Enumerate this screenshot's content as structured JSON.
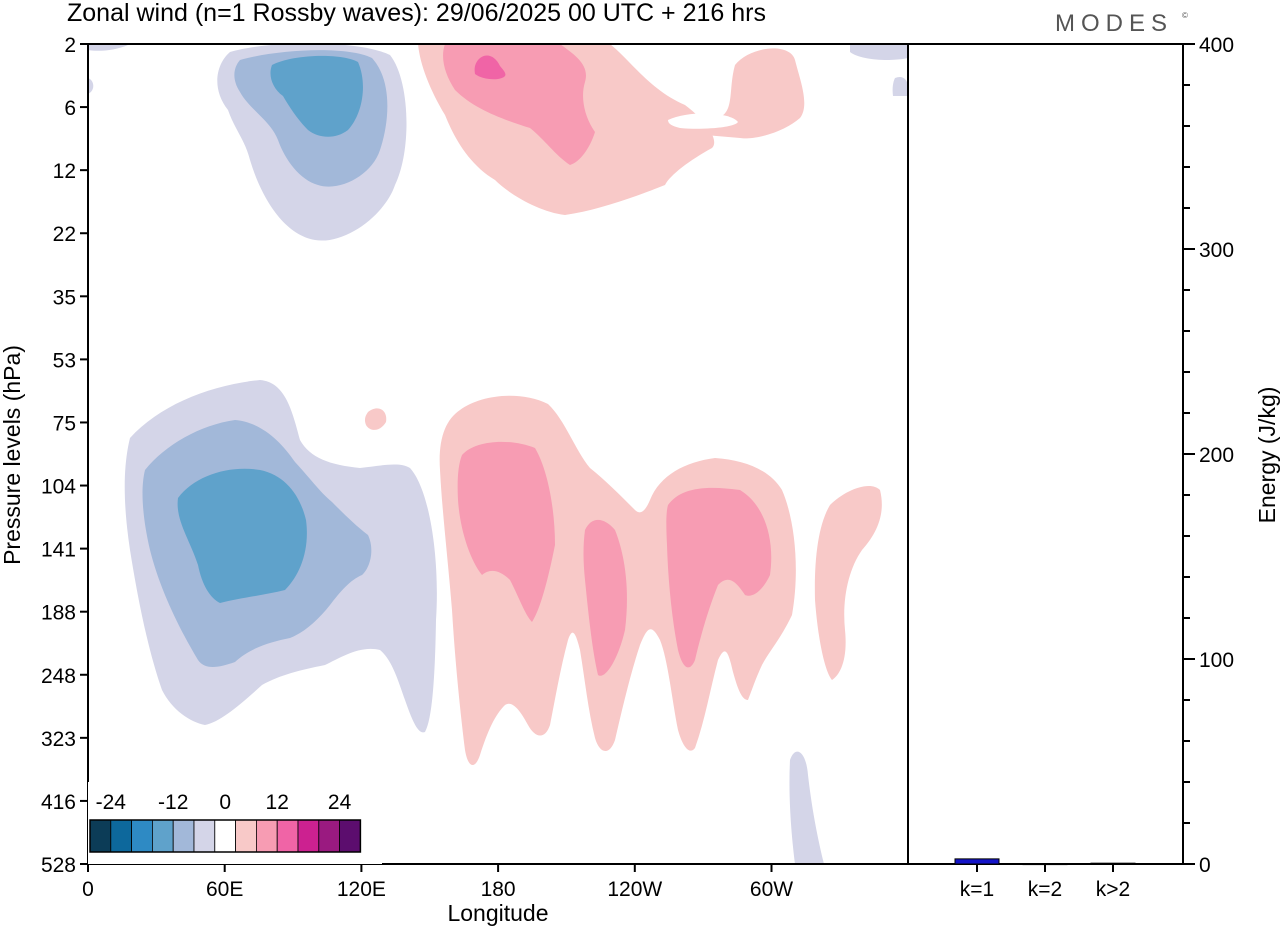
{
  "title": "Zonal wind (n=1 Rossby waves):  29/06/2025  00 UTC  + 216 hrs",
  "logo": {
    "text": "MODES",
    "mark": "©"
  },
  "colors": {
    "neg3": "#5fa2cb",
    "neg2": "#a2b8d9",
    "neg1": "#d4d5e8",
    "pos1": "#f8c9c8",
    "pos2": "#f79cb3",
    "pos3": "#f064a6"
  },
  "chart_data": [
    {
      "type": "heatmap",
      "title": "Zonal wind (n=1 Rossby waves):  29/06/2025  00 UTC  + 216 hrs",
      "xlabel": "Longitude",
      "ylabel": "Pressure levels (hPa)",
      "x_ticks": [
        "0",
        "60E",
        "120E",
        "180",
        "120W",
        "60W"
      ],
      "y_ticks": [
        "2",
        "6",
        "12",
        "22",
        "35",
        "53",
        "75",
        "104",
        "141",
        "188",
        "248",
        "323",
        "416",
        "528"
      ],
      "colorbar": {
        "labels": [
          "-24",
          "-12",
          "0",
          "12",
          "24"
        ],
        "levels": [
          -30,
          -24,
          -18,
          -12,
          -6,
          -3,
          3,
          6,
          12,
          18,
          24,
          30
        ],
        "colors": [
          "#0c3c57",
          "#0d689c",
          "#2e8ac4",
          "#5fa2cb",
          "#a2b8d9",
          "#d4d5e8",
          "#ffffff",
          "#f8c9c8",
          "#f79cb3",
          "#f064a6",
          "#cc2190",
          "#9a1a80",
          "#5c0d6e"
        ]
      },
      "features": [
        {
          "name": "negative anomaly, upper stratosphere",
          "lon_center": 100,
          "pressure_center_hPa": 6,
          "peak_value": -15
        },
        {
          "name": "positive anomaly, upper stratosphere",
          "lon_center": 190,
          "pressure_center_hPa": 4,
          "peak_value": 14
        },
        {
          "name": "negative anomaly, troposphere",
          "lon_center": 70,
          "pressure_center_hPa": 130,
          "peak_value": -16
        },
        {
          "name": "positive anomaly, troposphere",
          "lon_center": 220,
          "pressure_center_hPa": 150,
          "peak_value": 10
        }
      ]
    },
    {
      "type": "bar",
      "ylabel": "Energy (J/kg)",
      "ylim": [
        0,
        400
      ],
      "y_ticks": [
        "0",
        "100",
        "200",
        "300",
        "400"
      ],
      "categories": [
        "k=1",
        "k=2",
        "k>2"
      ],
      "values": [
        2.5,
        0.2,
        0.4
      ],
      "bar_color": "#1414c8"
    }
  ]
}
